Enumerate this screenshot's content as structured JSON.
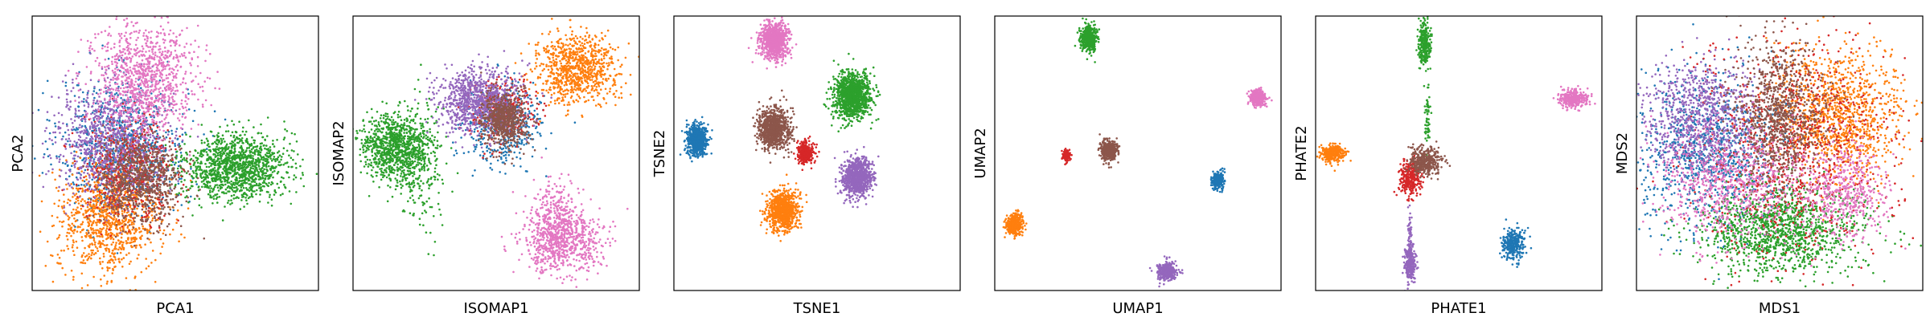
{
  "colors": {
    "blue": "#1f77b4",
    "orange": "#ff7f0e",
    "green": "#2ca02c",
    "red": "#d62728",
    "purple": "#9467bd",
    "brown": "#8c564b",
    "pink": "#e377c2"
  },
  "chart_data": [
    {
      "type": "scatter",
      "title": "",
      "xlabel": "PCA1",
      "ylabel": "PCA2",
      "xlim": [
        0,
        100
      ],
      "ylim": [
        0,
        100
      ],
      "grid": false,
      "legend": "none",
      "ticks": "none",
      "series": [
        {
          "color": "blue",
          "clusters": [
            {
              "cx": 32,
              "cy": 53,
              "sx": 11,
              "sy": 12,
              "n": 850
            }
          ]
        },
        {
          "color": "orange",
          "clusters": [
            {
              "cx": 27,
              "cy": 26,
              "sx": 9,
              "sy": 10,
              "n": 1000
            }
          ]
        },
        {
          "color": "green",
          "clusters": [
            {
              "cx": 71,
              "cy": 45,
              "sx": 9,
              "sy": 6,
              "n": 1300
            }
          ]
        },
        {
          "color": "red",
          "clusters": [
            {
              "cx": 34,
              "cy": 45,
              "sx": 8,
              "sy": 9,
              "n": 550
            }
          ]
        },
        {
          "color": "purple",
          "clusters": [
            {
              "cx": 27,
              "cy": 55,
              "sx": 10,
              "sy": 10,
              "n": 850
            }
          ]
        },
        {
          "color": "brown",
          "clusters": [
            {
              "cx": 38,
              "cy": 40,
              "sx": 7,
              "sy": 8,
              "n": 800
            }
          ]
        },
        {
          "color": "pink",
          "clusters": [
            {
              "cx": 39,
              "cy": 77,
              "sx": 9,
              "sy": 10,
              "n": 1000
            }
          ]
        }
      ]
    },
    {
      "type": "scatter",
      "title": "",
      "xlabel": "ISOMAP1",
      "ylabel": "ISOMAP2",
      "xlim": [
        0,
        100
      ],
      "ylim": [
        0,
        100
      ],
      "grid": false,
      "legend": "none",
      "ticks": "none",
      "series": [
        {
          "color": "blue",
          "clusters": [
            {
              "cx": 52,
              "cy": 61,
              "sx": 7,
              "sy": 7,
              "n": 450
            }
          ]
        },
        {
          "color": "orange",
          "clusters": [
            {
              "cx": 78,
              "cy": 81,
              "sx": 7,
              "sy": 6,
              "n": 850
            }
          ]
        },
        {
          "color": "green",
          "clusters": [
            {
              "cx": 14,
              "cy": 52,
              "sx": 6,
              "sy": 6,
              "n": 900
            },
            {
              "cx": 23,
              "cy": 46,
              "sx": 4,
              "sy": 12,
              "n": 250
            }
          ]
        },
        {
          "color": "red",
          "clusters": [
            {
              "cx": 52,
              "cy": 66,
              "sx": 6,
              "sy": 6,
              "n": 300
            }
          ]
        },
        {
          "color": "purple",
          "clusters": [
            {
              "cx": 43,
              "cy": 69,
              "sx": 7,
              "sy": 6,
              "n": 900
            }
          ]
        },
        {
          "color": "brown",
          "clusters": [
            {
              "cx": 53,
              "cy": 62,
              "sx": 4,
              "sy": 5,
              "n": 650
            }
          ]
        },
        {
          "color": "pink",
          "clusters": [
            {
              "cx": 73,
              "cy": 18,
              "sx": 7,
              "sy": 6,
              "n": 750
            },
            {
              "cx": 71,
              "cy": 28,
              "sx": 4,
              "sy": 6,
              "n": 200
            }
          ]
        }
      ]
    },
    {
      "type": "scatter",
      "title": "",
      "xlabel": "TSNE1",
      "ylabel": "TSNE2",
      "xlim": [
        0,
        100
      ],
      "ylim": [
        0,
        100
      ],
      "grid": false,
      "legend": "none",
      "ticks": "none",
      "series": [
        {
          "color": "blue",
          "clusters": [
            {
              "cx": 8,
              "cy": 55,
              "sx": 1.7,
              "sy": 2.6,
              "n": 700
            }
          ]
        },
        {
          "color": "orange",
          "clusters": [
            {
              "cx": 38,
              "cy": 29,
              "sx": 2.6,
              "sy": 3.5,
              "n": 900
            }
          ]
        },
        {
          "color": "green",
          "clusters": [
            {
              "cx": 62,
              "cy": 71,
              "sx": 3.2,
              "sy": 4.2,
              "n": 1200
            }
          ]
        },
        {
          "color": "red",
          "clusters": [
            {
              "cx": 46,
              "cy": 50,
              "sx": 1.4,
              "sy": 1.9,
              "n": 350
            }
          ]
        },
        {
          "color": "purple",
          "clusters": [
            {
              "cx": 64,
              "cy": 41,
              "sx": 2.6,
              "sy": 3.5,
              "n": 900
            }
          ]
        },
        {
          "color": "brown",
          "clusters": [
            {
              "cx": 35,
              "cy": 59,
              "sx": 2.7,
              "sy": 3.6,
              "n": 900
            }
          ]
        },
        {
          "color": "pink",
          "clusters": [
            {
              "cx": 35,
              "cy": 91,
              "sx": 2.5,
              "sy": 3.2,
              "n": 850
            }
          ]
        }
      ]
    },
    {
      "type": "scatter",
      "title": "",
      "xlabel": "UMAP1",
      "ylabel": "UMAP2",
      "xlim": [
        0,
        100
      ],
      "ylim": [
        0,
        100
      ],
      "grid": false,
      "legend": "none",
      "ticks": "none",
      "series": [
        {
          "color": "blue",
          "clusters": [
            {
              "cx": 78,
              "cy": 40,
              "sx": 1.0,
              "sy": 1.5,
              "n": 300
            }
          ]
        },
        {
          "color": "orange",
          "clusters": [
            {
              "cx": 7,
              "cy": 24,
              "sx": 1.3,
              "sy": 1.8,
              "n": 400
            }
          ]
        },
        {
          "color": "green",
          "clusters": [
            {
              "cx": 33,
              "cy": 92,
              "sx": 1.4,
              "sy": 2.4,
              "n": 500
            }
          ]
        },
        {
          "color": "red",
          "clusters": [
            {
              "cx": 25,
              "cy": 49,
              "sx": 0.7,
              "sy": 0.9,
              "n": 150
            }
          ]
        },
        {
          "color": "purple",
          "clusters": [
            {
              "cx": 60,
              "cy": 7,
              "sx": 1.5,
              "sy": 1.5,
              "n": 400
            }
          ]
        },
        {
          "color": "brown",
          "clusters": [
            {
              "cx": 40,
              "cy": 51,
              "sx": 1.4,
              "sy": 1.9,
              "n": 400
            }
          ]
        },
        {
          "color": "pink",
          "clusters": [
            {
              "cx": 92,
              "cy": 70,
              "sx": 1.3,
              "sy": 1.4,
              "n": 350
            }
          ]
        }
      ]
    },
    {
      "type": "scatter",
      "title": "",
      "xlabel": "PHATE1",
      "ylabel": "PHATE2",
      "xlim": [
        0,
        100
      ],
      "ylim": [
        0,
        100
      ],
      "grid": false,
      "legend": "none",
      "ticks": "none",
      "series": [
        {
          "color": "blue",
          "clusters": [
            {
              "cx": 69,
              "cy": 17,
              "sx": 2.0,
              "sy": 2.6,
              "n": 300
            }
          ]
        },
        {
          "color": "orange",
          "clusters": [
            {
              "cx": 6,
              "cy": 50,
              "sx": 2.0,
              "sy": 1.6,
              "n": 300
            }
          ]
        },
        {
          "color": "green",
          "clusters": [
            {
              "cx": 38,
              "cy": 90,
              "sx": 1.0,
              "sy": 4.0,
              "n": 280
            },
            {
              "cx": 39,
              "cy": 62,
              "sx": 0.5,
              "sy": 6.0,
              "n": 60
            }
          ]
        },
        {
          "color": "red",
          "clusters": [
            {
              "cx": 33,
              "cy": 41,
              "sx": 1.8,
              "sy": 3.2,
              "n": 300
            }
          ]
        },
        {
          "color": "purple",
          "clusters": [
            {
              "cx": 33,
              "cy": 10,
              "sx": 1.0,
              "sy": 3.2,
              "n": 260
            },
            {
              "cx": 33,
              "cy": 20,
              "sx": 0.4,
              "sy": 4.0,
              "n": 60
            }
          ]
        },
        {
          "color": "brown",
          "clusters": [
            {
              "cx": 38,
              "cy": 47,
              "sx": 2.8,
              "sy": 2.4,
              "n": 380
            }
          ]
        },
        {
          "color": "pink",
          "clusters": [
            {
              "cx": 90,
              "cy": 70,
              "sx": 2.5,
              "sy": 1.8,
              "n": 300
            }
          ]
        }
      ]
    },
    {
      "type": "scatter",
      "title": "",
      "xlabel": "MDS1",
      "ylabel": "MDS2",
      "xlim": [
        0,
        100
      ],
      "ylim": [
        0,
        100
      ],
      "grid": false,
      "legend": "none",
      "ticks": "none",
      "series": [
        {
          "color": "blue",
          "clusters": [
            {
              "cx": 25,
              "cy": 50,
              "sx": 12,
              "sy": 14,
              "n": 950
            }
          ]
        },
        {
          "color": "orange",
          "clusters": [
            {
              "cx": 71,
              "cy": 64,
              "sx": 11,
              "sy": 12,
              "n": 1100
            }
          ]
        },
        {
          "color": "green",
          "clusters": [
            {
              "cx": 50,
              "cy": 22,
              "sx": 14,
              "sy": 8,
              "n": 1300
            }
          ]
        },
        {
          "color": "red",
          "clusters": [
            {
              "cx": 55,
              "cy": 53,
              "sx": 18,
              "sy": 20,
              "n": 900
            }
          ]
        },
        {
          "color": "purple",
          "clusters": [
            {
              "cx": 22,
              "cy": 63,
              "sx": 10,
              "sy": 11,
              "n": 900
            }
          ]
        },
        {
          "color": "brown",
          "clusters": [
            {
              "cx": 50,
              "cy": 63,
              "sx": 8,
              "sy": 13,
              "n": 1000
            }
          ]
        },
        {
          "color": "pink",
          "clusters": [
            {
              "cx": 32,
              "cy": 38,
              "sx": 13,
              "sy": 10,
              "n": 700
            },
            {
              "cx": 72,
              "cy": 36,
              "sx": 8,
              "sy": 8,
              "n": 500
            }
          ]
        }
      ]
    }
  ]
}
